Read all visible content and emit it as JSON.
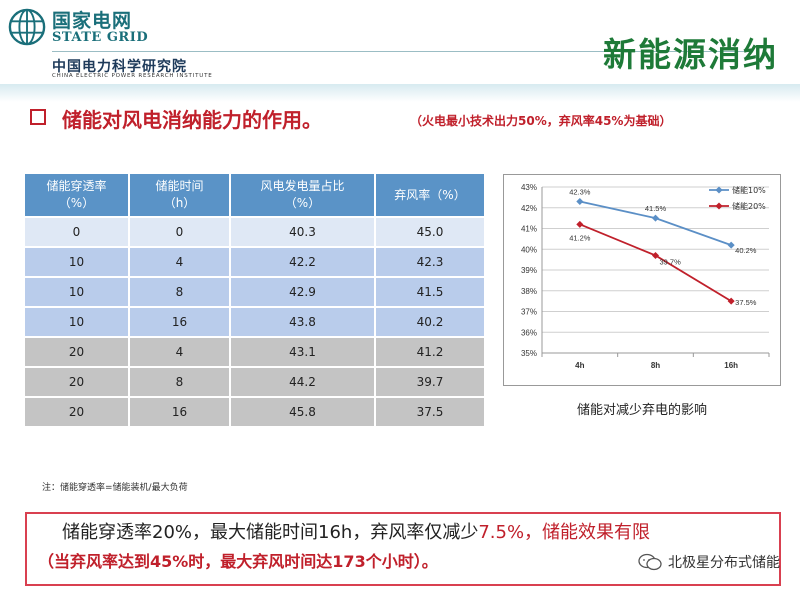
{
  "header": {
    "logo_cn": "国家电网",
    "logo_en": "STATE GRID",
    "institute_cn": "中国电力科学研究院",
    "institute_en": "CHINA ELECTRIC POWER RESEARCH INSTITUTE",
    "slide_title": "新能源消纳"
  },
  "heading": {
    "text": "储能对风电消纳能力的作用。",
    "note": "（火电最小技术出力50%，弃风率45%为基础）"
  },
  "table": {
    "headers": [
      [
        "储能穿透率",
        "（%）"
      ],
      [
        "储能时间",
        "（h）"
      ],
      [
        "风电发电量占比",
        "（%）"
      ],
      [
        "弃风率（%）",
        ""
      ]
    ],
    "rows": [
      [
        "0",
        "0",
        "40.3",
        "45.0"
      ],
      [
        "10",
        "4",
        "42.2",
        "42.3"
      ],
      [
        "10",
        "8",
        "42.9",
        "41.5"
      ],
      [
        "10",
        "16",
        "43.8",
        "40.2"
      ],
      [
        "20",
        "4",
        "43.1",
        "41.2"
      ],
      [
        "20",
        "8",
        "44.2",
        "39.7"
      ],
      [
        "20",
        "16",
        "45.8",
        "37.5"
      ]
    ]
  },
  "chart_data": {
    "type": "line",
    "categories": [
      "4h",
      "8h",
      "16h"
    ],
    "series": [
      {
        "name": "储能10%",
        "values": [
          42.3,
          41.5,
          40.2
        ],
        "labels": [
          "42.3%",
          "41.5%",
          "40.2%"
        ],
        "color": "#5b8fc6"
      },
      {
        "name": "储能20%",
        "values": [
          41.2,
          39.7,
          37.5
        ],
        "labels": [
          "41.2%",
          "39.7%",
          "37.5%"
        ],
        "color": "#c0202b"
      }
    ],
    "ylim": [
      35,
      43
    ],
    "yticks": [
      "35%",
      "36%",
      "37%",
      "38%",
      "39%",
      "40%",
      "41%",
      "42%",
      "43%"
    ],
    "grid": true,
    "legend": "top-right"
  },
  "chart_caption": "储能对减少弃电的影响",
  "footnote": "注：储能穿透率=储能装机/最大负荷",
  "conclusion": {
    "line1_a": "储能穿透率20%，最大储能时间16h，弃风率仅减少",
    "line1_hl": "7.5%，储能效果有限",
    "line2": "（当弃风率达到45%时，最大弃风时间达173个小时）。"
  },
  "watermark": "北极星分布式储能",
  "colors": {
    "title_green": "#1e7a38",
    "accent_red": "#c0202b",
    "table_head": "#5a93c7"
  }
}
